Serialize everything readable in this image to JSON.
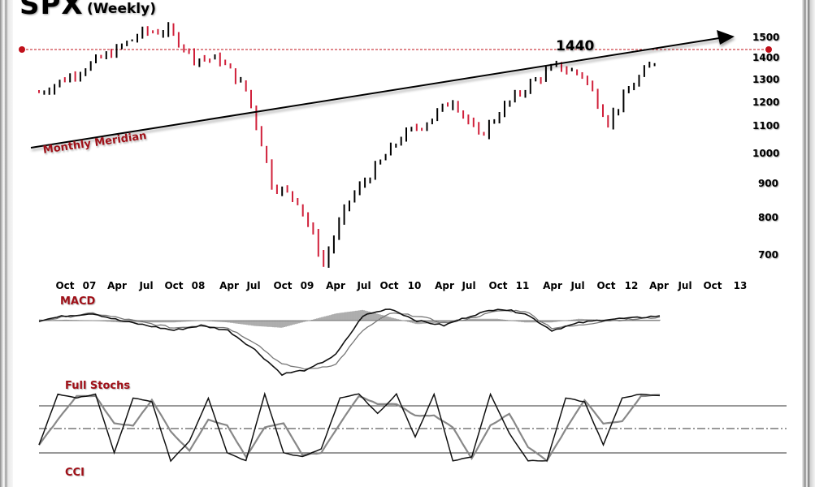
{
  "header": {
    "title": "SPX",
    "subtitle": "(Weekly)"
  },
  "annotations": {
    "level_label": "1440",
    "trendline_label": "Monthly Meridian",
    "level_color": "#c0101a",
    "up_color": "#000000",
    "down_color": "#d0203a"
  },
  "panels": {
    "macd_label": "MACD",
    "stochs_label": "Full Stochs",
    "cci_label": "CCI"
  },
  "chart_data": [
    {
      "type": "candlestick-line",
      "title": "SPX (Weekly)",
      "xlabel": "",
      "ylabel": "",
      "y_scale": "log",
      "yticks": [
        1500,
        1400,
        1300,
        1200,
        1100,
        1000,
        900,
        800,
        700
      ],
      "xticks": [
        "Oct",
        "07",
        "Apr",
        "Jul",
        "Oct",
        "08",
        "Apr",
        "Jul",
        "Oct",
        "09",
        "Apr",
        "Jul",
        "Oct",
        "10",
        "Apr",
        "Jul",
        "Oct",
        "11",
        "Apr",
        "Jul",
        "Oct",
        "12",
        "Apr",
        "Jul",
        "Oct",
        "13"
      ],
      "x": [
        "2006-07",
        "2006-10",
        "2007-01",
        "2007-04",
        "2007-07",
        "2007-10",
        "2008-01",
        "2008-04",
        "2008-07",
        "2008-10",
        "2009-01",
        "2009-03",
        "2009-04",
        "2009-07",
        "2009-10",
        "2010-01",
        "2010-04",
        "2010-07",
        "2010-10",
        "2011-01",
        "2011-04",
        "2011-07",
        "2011-10",
        "2012-01",
        "2012-03"
      ],
      "series": [
        {
          "name": "SPX",
          "values": [
            1240,
            1300,
            1370,
            1440,
            1530,
            1540,
            1400,
            1390,
            1250,
            900,
            850,
            680,
            850,
            950,
            1060,
            1120,
            1210,
            1060,
            1180,
            1280,
            1360,
            1320,
            1120,
            1280,
            1410
          ]
        }
      ],
      "annotations": [
        {
          "type": "hline",
          "y": 1440,
          "label": "1440",
          "style": "dashed",
          "color": "#c0101a"
        },
        {
          "type": "trendline",
          "label": "Monthly Meridian",
          "from": [
            "2006-07",
            1000
          ],
          "to": [
            "2012-09",
            1530
          ]
        }
      ]
    },
    {
      "type": "line",
      "title": "MACD",
      "series": [
        {
          "name": "MACD",
          "values": [
            0,
            2,
            3,
            0,
            -2,
            -4,
            -2,
            -4,
            -12,
            -22,
            -20,
            -14,
            2,
            5,
            0,
            -2,
            2,
            5,
            3,
            -4,
            -1,
            0.5,
            1,
            2
          ]
        },
        {
          "name": "Signal",
          "values": [
            0,
            1.5,
            3,
            1,
            -1,
            -3,
            -2,
            -3,
            -9,
            -18,
            -20,
            -18,
            -4,
            3,
            2,
            -1,
            1,
            4,
            4,
            -3,
            -2,
            0,
            0.5,
            1.5
          ]
        }
      ]
    },
    {
      "type": "line",
      "title": "Full Stochs",
      "ylim": [
        0,
        100
      ],
      "levels": [
        80,
        50,
        20
      ],
      "series": [
        {
          "name": "%K",
          "values": [
            30,
            95,
            90,
            95,
            20,
            90,
            85,
            10,
            35,
            90,
            20,
            10,
            95,
            20,
            15,
            25,
            90,
            95,
            70,
            95,
            40,
            95,
            10,
            15,
            95,
            45,
            10,
            10,
            90,
            85,
            30,
            90,
            95,
            93
          ]
        }
      ]
    }
  ]
}
